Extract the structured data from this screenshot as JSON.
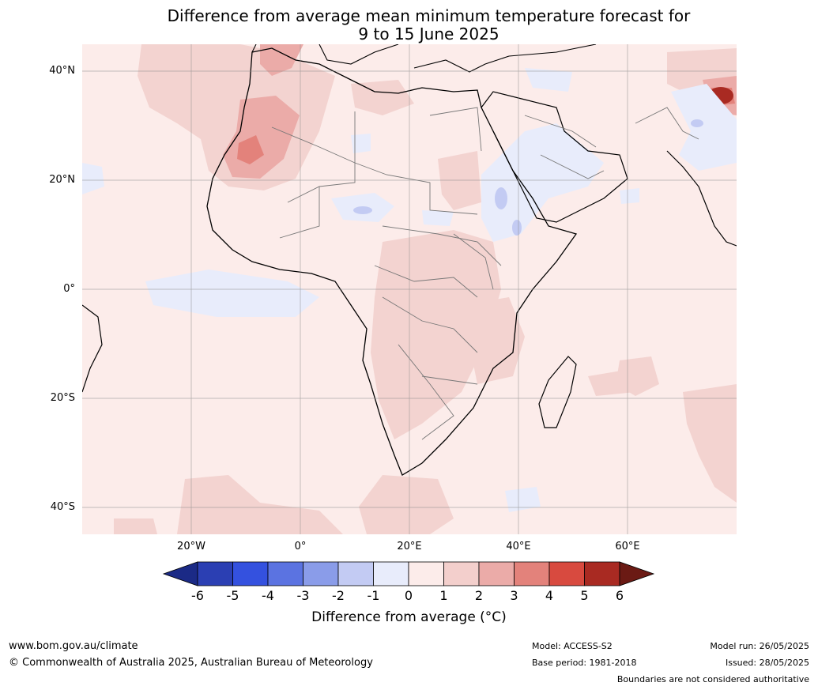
{
  "title_line1": "Difference from average mean minimum temperature forecast for",
  "title_line2": "9 to 15 June 2025",
  "map": {
    "lat_labels": [
      "40°N",
      "20°N",
      "0°",
      "20°S",
      "40°S"
    ],
    "lon_labels": [
      "20°W",
      "0°",
      "20°E",
      "40°E",
      "60°E"
    ]
  },
  "colorbar": {
    "title": "Difference from average (°C)",
    "ticks": [
      "-6",
      "-5",
      "-4",
      "-3",
      "-2",
      "-1",
      "0",
      "1",
      "2",
      "3",
      "4",
      "5",
      "6"
    ],
    "colors": [
      "#1b2a86",
      "#2b3fb3",
      "#3451df",
      "#5b73e1",
      "#8a9ce9",
      "#c3cbf3",
      "#e8ecfb",
      "#fcecea",
      "#f3cfcc",
      "#ebaba8",
      "#e3827b",
      "#d84a3f",
      "#a92a22",
      "#6b1a14"
    ]
  },
  "footer": {
    "website": "www.bom.gov.au/climate",
    "copyright": "© Commonwealth of Australia 2025, Australian Bureau of Meteorology",
    "model": "Model: ACCESS-S2",
    "base_period": "Base period: 1981-2018",
    "model_run": "Model run: 26/05/2025",
    "issued": "Issued: 28/05/2025",
    "disclaimer": "Boundaries are not considered authoritative"
  }
}
